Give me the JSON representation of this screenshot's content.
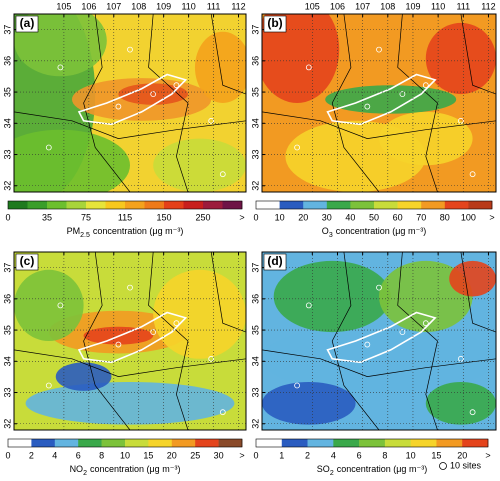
{
  "map_extent": {
    "lon": [
      103.0,
      112.3
    ],
    "lat": [
      31.8,
      37.5
    ]
  },
  "lon_ticks": [
    105,
    106,
    107,
    108,
    109,
    110,
    111,
    112
  ],
  "lat_ticks": [
    32,
    33,
    34,
    35,
    36,
    37
  ],
  "panels": [
    {
      "label": "(a)",
      "species": "PM",
      "subscript": "2.5",
      "unit_text": "concentration (μg m⁻³)",
      "colorbar_ticks": [
        0,
        35,
        75,
        115,
        150,
        250,
        ">"
      ],
      "colorbar_colors": [
        "#1f7a1f",
        "#3a9e2a",
        "#6cbf2e",
        "#a8d43a",
        "#e6e43a",
        "#f7c81e",
        "#f4a21c",
        "#ef7a1a",
        "#e4401a",
        "#c8201e",
        "#9c1c3c",
        "#6e1446"
      ]
    },
    {
      "label": "(b)",
      "species": "O",
      "subscript": "3",
      "unit_text": "concentration (μg m⁻³)",
      "colorbar_ticks": [
        0,
        10,
        20,
        30,
        40,
        50,
        60,
        70,
        80,
        100,
        ">"
      ],
      "colorbar_colors": [
        "#ffffff",
        "#2a5cc0",
        "#62b4e0",
        "#3aa84a",
        "#7cc23a",
        "#c8dc3a",
        "#f6d42a",
        "#f29a22",
        "#e4441c",
        "#b83a1a"
      ]
    },
    {
      "label": "(c)",
      "species": "NO",
      "subscript": "2",
      "unit_text": "concentration (μg m⁻³)",
      "colorbar_ticks": [
        0,
        2,
        4,
        6,
        8,
        10,
        15,
        20,
        25,
        30,
        ">"
      ],
      "colorbar_colors": [
        "#ffffff",
        "#2a5cc0",
        "#62b4e0",
        "#3aa84a",
        "#7cc23a",
        "#c8dc3a",
        "#f6d42a",
        "#f29a22",
        "#e4441c",
        "#8a4a2a"
      ]
    },
    {
      "label": "(d)",
      "species": "SO",
      "subscript": "2",
      "unit_text": "concentration (μg m⁻³)",
      "colorbar_ticks": [
        0,
        1,
        2,
        4,
        6,
        8,
        10,
        15,
        20,
        ">"
      ],
      "colorbar_colors": [
        "#ffffff",
        "#2a5cc0",
        "#62b4e0",
        "#3aa84a",
        "#7cc23a",
        "#c8dc3a",
        "#f6d42a",
        "#f29a22",
        "#e4441c"
      ]
    }
  ],
  "legend": {
    "text": "10 sites"
  }
}
